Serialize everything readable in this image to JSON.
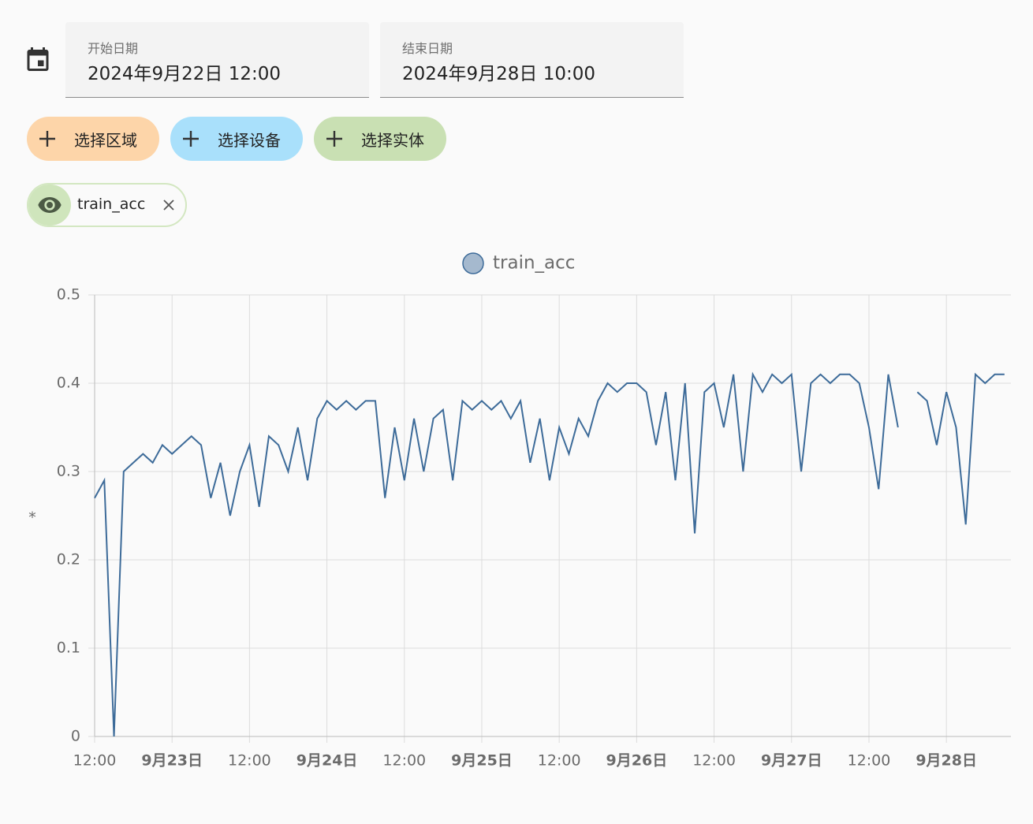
{
  "date_picker": {
    "start_label": "开始日期",
    "start_value": "2024年9月22日 12:00",
    "end_label": "结束日期",
    "end_value": "2024年9月28日 10:00"
  },
  "buttons": [
    "选择区域",
    "选择设备",
    "选择实体"
  ],
  "chip": "train_acc",
  "chart_data": {
    "type": "line",
    "y_label": "*",
    "x": [
      0,
      1.5,
      3,
      4.5,
      6,
      7.5,
      9,
      10.5,
      12,
      13.5,
      15,
      16.5,
      18,
      19.5,
      21,
      22.5,
      24,
      25.5,
      27,
      28.5,
      30,
      31.5,
      33,
      34.5,
      36,
      37.5,
      39,
      40.5,
      42,
      43.5,
      45,
      46.5,
      48,
      49.5,
      51,
      52.5,
      54,
      55.5,
      57,
      58.5,
      60,
      61.5,
      63,
      64.5,
      66,
      67.5,
      69,
      70.5,
      72,
      73.5,
      75,
      76.5,
      78,
      79.5,
      81,
      82.5,
      84,
      85.5,
      87,
      88.5,
      90,
      91.5,
      93,
      94.5,
      96,
      97.5,
      99,
      100.5,
      102,
      103.5,
      105,
      106.5,
      108,
      109.5,
      111,
      112.5,
      114,
      115.5,
      117,
      118.5,
      120,
      121.5,
      123,
      124.5,
      126,
      127.5,
      129,
      130.5,
      132,
      133.5,
      135,
      136.5,
      138,
      139.5,
      141
    ],
    "series": [
      {
        "name": "train_acc",
        "color": "#3d6b99",
        "values": [
          0.27,
          0.29,
          0,
          0.3,
          0.31,
          0.32,
          0.31,
          0.33,
          0.32,
          0.33,
          0.34,
          0.33,
          0.27,
          0.31,
          0.25,
          0.3,
          0.33,
          0.26,
          0.34,
          0.33,
          0.3,
          0.35,
          0.29,
          0.36,
          0.38,
          0.37,
          0.38,
          0.37,
          0.38,
          0.38,
          0.27,
          0.35,
          0.29,
          0.36,
          0.3,
          0.36,
          0.37,
          0.29,
          0.38,
          0.37,
          0.38,
          0.37,
          0.38,
          0.36,
          0.38,
          0.31,
          0.36,
          0.29,
          0.35,
          0.32,
          0.36,
          0.34,
          0.38,
          0.4,
          0.39,
          0.4,
          0.4,
          0.39,
          0.33,
          0.39,
          0.29,
          0.4,
          0.23,
          0.39,
          0.4,
          0.35,
          0.41,
          0.3,
          0.41,
          0.39,
          0.41,
          0.4,
          0.41,
          0.3,
          0.4,
          0.41,
          0.4,
          0.41,
          0.41,
          0.4,
          0.35,
          0.28,
          0.41,
          0.35,
          null,
          0.39,
          0.38,
          0.33,
          0.39,
          0.35,
          0.24,
          0.41,
          0.4,
          0.41,
          0.41
        ]
      }
    ],
    "xlim": [
      0,
      142
    ],
    "xticks": [
      {
        "value": 0,
        "label": "12:00"
      },
      {
        "value": 12,
        "label": "9月23日"
      },
      {
        "value": 24,
        "label": "12:00"
      },
      {
        "value": 36,
        "label": "9月24日"
      },
      {
        "value": 48,
        "label": "12:00"
      },
      {
        "value": 60,
        "label": "9月25日"
      },
      {
        "value": 72,
        "label": "12:00"
      },
      {
        "value": 84,
        "label": "9月26日"
      },
      {
        "value": 96,
        "label": "12:00"
      },
      {
        "value": 108,
        "label": "9月27日"
      },
      {
        "value": 120,
        "label": "12:00"
      },
      {
        "value": 132,
        "label": "9月28日"
      }
    ],
    "ylim": [
      0,
      0.5
    ],
    "yticks": [
      0,
      0.1,
      0.2,
      0.3,
      0.4,
      0.5
    ],
    "grid": true
  }
}
